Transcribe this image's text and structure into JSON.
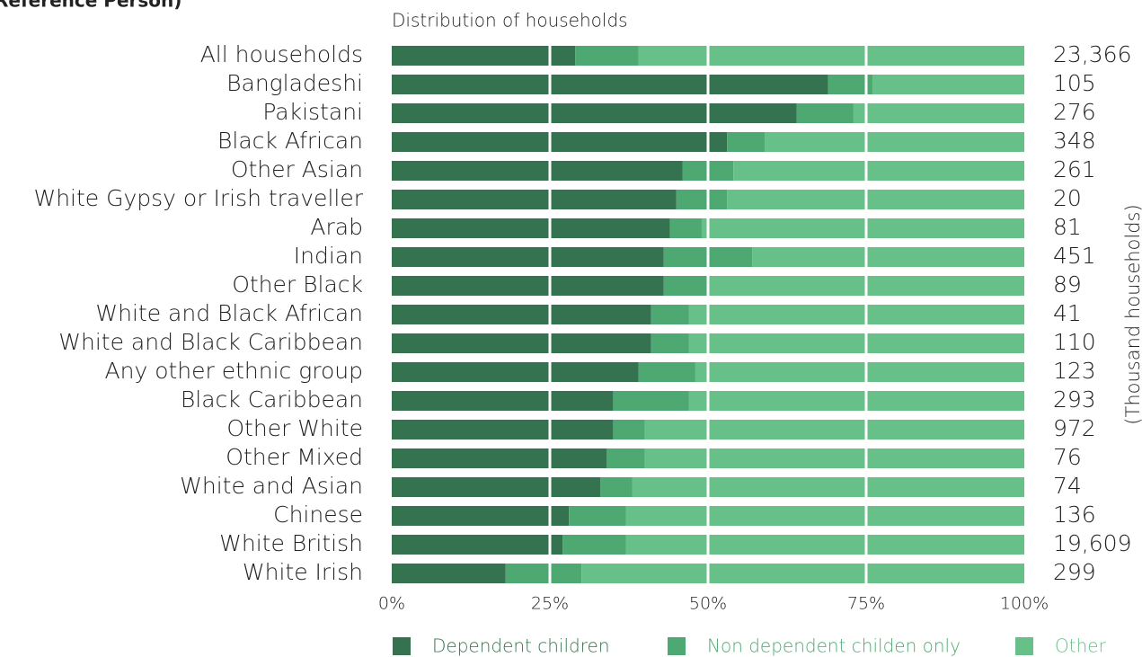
{
  "chart_data": {
    "type": "stacked_bar_horizontal",
    "title": "Reference Person)",
    "subtitle": "Distribution of households",
    "categories": [
      "All households",
      "Bangladeshi",
      "Pakistani",
      "Black African",
      "Other Asian",
      "White Gypsy or Irish traveller",
      "Arab",
      "Indian",
      "Other Black",
      "White and Black African",
      "White and Black Caribbean",
      "Any other ethnic group",
      "Black Caribbean",
      "Other White",
      "Other Mixed",
      "White and Asian",
      "Chinese",
      "White British",
      "White Irish"
    ],
    "series": [
      {
        "name": "Dependent children",
        "color": "#357350",
        "values": [
          29,
          69,
          64,
          53,
          46,
          45,
          44,
          43,
          43,
          41,
          41,
          39,
          35,
          35,
          34,
          33,
          28,
          27,
          18
        ]
      },
      {
        "name": "Non dependent childen only",
        "color": "#4ea872",
        "values": [
          10,
          7,
          9,
          6,
          8,
          8,
          5,
          14,
          7,
          6,
          6,
          9,
          12,
          5,
          6,
          5,
          9,
          10,
          12
        ]
      },
      {
        "name": "Other",
        "color": "#66c088",
        "values": [
          61,
          24,
          27,
          41,
          46,
          47,
          51,
          43,
          50,
          53,
          53,
          52,
          53,
          60,
          60,
          62,
          63,
          63,
          70
        ]
      }
    ],
    "xlim": [
      0,
      100
    ],
    "xticks": [
      {
        "value": 0,
        "label": "0%"
      },
      {
        "value": 25,
        "label": "25%"
      },
      {
        "value": 50,
        "label": "50%"
      },
      {
        "value": 75,
        "label": "75%"
      },
      {
        "value": 100,
        "label": "100%"
      }
    ],
    "grid": true,
    "totals": {
      "label": "(Thousand households)",
      "values": [
        23366,
        105,
        276,
        348,
        261,
        20,
        81,
        451,
        89,
        41,
        110,
        123,
        293,
        972,
        76,
        74,
        136,
        19609,
        299
      ],
      "value_labels": [
        "23,366",
        "105",
        "276",
        "348",
        "261",
        "20",
        "81",
        "451",
        "89",
        "41",
        "110",
        "123",
        "293",
        "972",
        "76",
        "74",
        "136",
        "19,609",
        "299"
      ]
    },
    "legend": "bottom"
  }
}
